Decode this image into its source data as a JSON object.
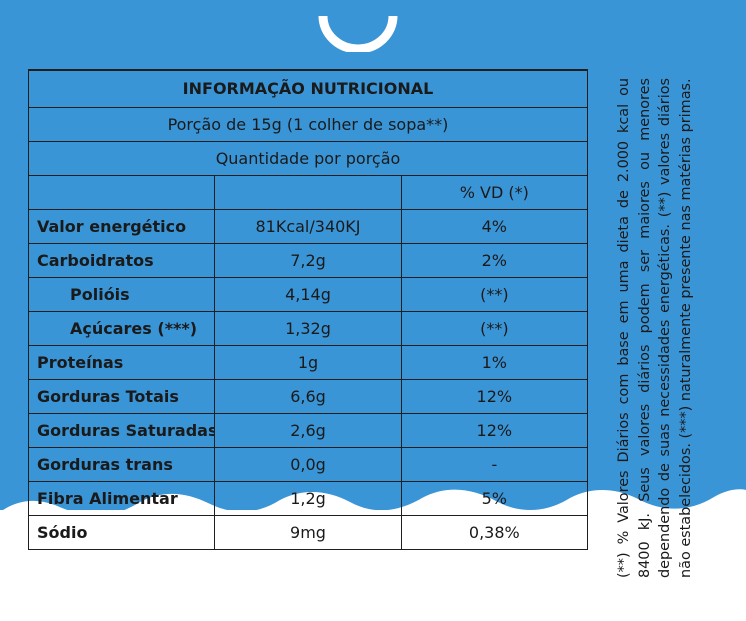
{
  "colors": {
    "background_blue": "#3a95d7",
    "wave_white": "#ffffff",
    "text": "#1a1a1a",
    "border": "#1e1e1e"
  },
  "table": {
    "title": "INFORMAÇÃO NUTRICIONAL",
    "portion": "Porção de 15g (1 colher de sopa**)",
    "quantity_header": "Quantidade por porção",
    "vd_header": "% VD (*)",
    "rows": [
      {
        "name": "Valor energético",
        "qty": "81Kcal/340KJ",
        "vd": "4%"
      },
      {
        "name": "Carboidratos",
        "qty": "7,2g",
        "vd": "2%"
      },
      {
        "name": "Polióis",
        "qty": "4,14g",
        "vd": "(**)"
      },
      {
        "name": "Açúcares (***)",
        "qty": "1,32g",
        "vd": "(**)"
      },
      {
        "name": "Proteínas",
        "qty": "1g",
        "vd": "1%"
      },
      {
        "name": "Gorduras Totais",
        "qty": "6,6g",
        "vd": "12%"
      },
      {
        "name": "Gorduras Saturadas",
        "qty": "2,6g",
        "vd": "12%"
      },
      {
        "name": "Gorduras trans",
        "qty": "0,0g",
        "vd": "-"
      },
      {
        "name": "Fibra Alimentar",
        "qty": "1,2g",
        "vd": "5%"
      },
      {
        "name": "Sódio",
        "qty": "9mg",
        "vd": "0,38%"
      }
    ]
  },
  "footnote": "(**) % Valores Diários com base em uma dieta de 2.000 kcal ou 8400 kJ. Seus valores diários podem ser maiores ou menores dependendo de suas necessidades energéticas. (**) valores diários não estabelecidos. (***) naturalmente presente nas matérias primas."
}
